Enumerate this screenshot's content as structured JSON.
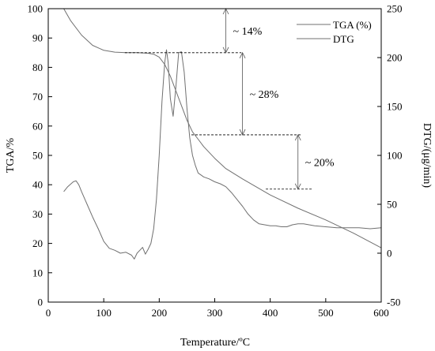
{
  "chart_data": {
    "type": "line",
    "xlabel": "Temperature/ºC",
    "ylabel": "TGA/%",
    "y2label": "DTG/(μg/min)",
    "xlim": [
      0,
      600
    ],
    "ylim": [
      0,
      100
    ],
    "y2lim": [
      -50,
      250
    ],
    "xticks": [
      0,
      100,
      200,
      300,
      400,
      500,
      600
    ],
    "yticks": [
      0,
      10,
      20,
      30,
      40,
      50,
      60,
      70,
      80,
      90,
      100
    ],
    "y2ticks": [
      -50,
      0,
      50,
      100,
      150,
      200,
      250
    ],
    "grid": false,
    "legend_position": "top-right",
    "line_color": "#707070",
    "series": [
      {
        "name": "TGA (%)",
        "axis": "left",
        "x": [
          28,
          40,
          60,
          80,
          100,
          120,
          140,
          160,
          180,
          190,
          200,
          210,
          220,
          230,
          240,
          250,
          260,
          270,
          280,
          300,
          320,
          350,
          400,
          450,
          500,
          550,
          600
        ],
        "y": [
          100,
          96,
          91,
          87.5,
          85.8,
          85.2,
          85,
          85,
          84.8,
          84.5,
          83.5,
          81,
          77,
          72,
          67,
          62,
          58,
          55.5,
          53,
          49,
          45.5,
          42,
          36.5,
          32,
          28,
          23.5,
          18.5
        ]
      },
      {
        "name": "DTG",
        "axis": "right",
        "x": [
          28,
          35,
          45,
          50,
          55,
          60,
          70,
          80,
          90,
          100,
          110,
          120,
          130,
          140,
          150,
          155,
          160,
          165,
          170,
          175,
          180,
          185,
          190,
          195,
          200,
          205,
          210,
          213,
          216,
          220,
          225,
          230,
          235,
          240,
          245,
          250,
          255,
          260,
          265,
          270,
          280,
          290,
          300,
          310,
          320,
          330,
          340,
          350,
          360,
          370,
          380,
          390,
          400,
          410,
          420,
          430,
          440,
          450,
          460,
          480,
          500,
          520,
          540,
          560,
          580,
          600
        ],
        "y": [
          63,
          68,
          73,
          74,
          70,
          63,
          50,
          37,
          25,
          12,
          5,
          3,
          0,
          1,
          -2,
          -6,
          0,
          3,
          6,
          -1,
          4,
          10,
          25,
          55,
          100,
          155,
          195,
          208,
          195,
          158,
          140,
          170,
          205,
          206,
          185,
          148,
          118,
          100,
          90,
          82,
          78,
          76,
          73,
          71,
          68,
          62,
          55,
          48,
          40,
          34,
          30,
          29,
          28,
          28,
          27,
          27,
          29,
          30,
          30,
          28,
          27,
          26,
          26,
          26,
          25,
          26
        ]
      }
    ],
    "annotations": [
      {
        "label": "~ 14%",
        "x": 320,
        "y_top": 100,
        "y_bottom": 85
      },
      {
        "label": "~ 28%",
        "x": 350,
        "y_top": 85,
        "y_bottom": 57
      },
      {
        "label": "~ 20%",
        "x": 450,
        "y_top": 57,
        "y_bottom": 38.5
      }
    ],
    "dashed_levels": [
      {
        "y": 85,
        "x_from": 138,
        "x_to": 348
      },
      {
        "y": 57,
        "x_from": 258,
        "x_to": 455
      },
      {
        "y": 38.5,
        "x_from": 392,
        "x_to": 475
      }
    ]
  }
}
